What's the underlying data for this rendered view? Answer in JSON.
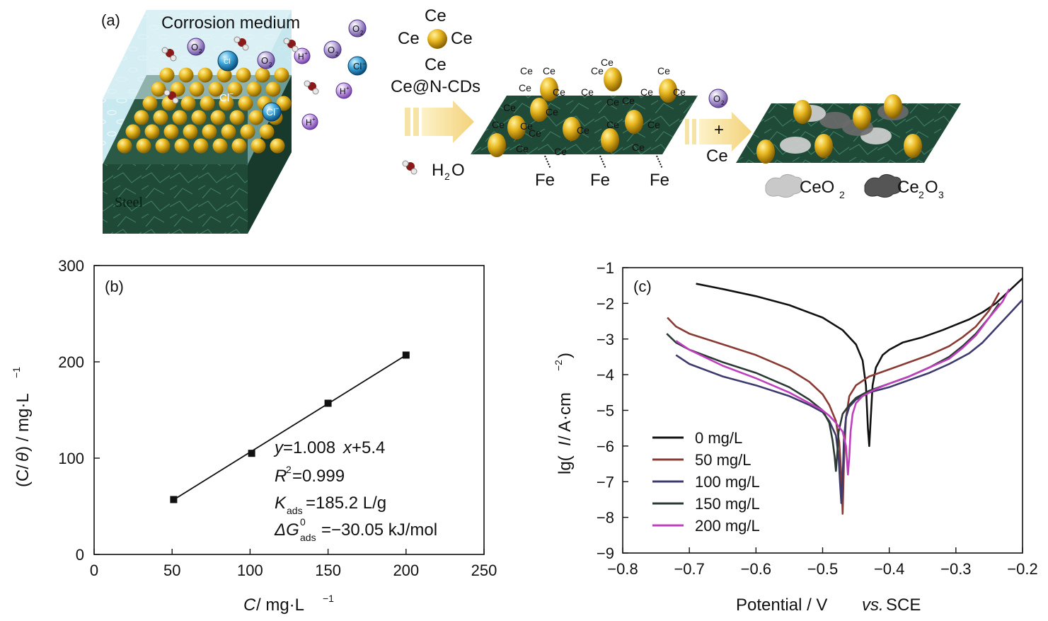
{
  "panel_a": {
    "label": "(a)",
    "medium_label": "Corrosion medium",
    "steel_label": "Steel",
    "o2_label": "O",
    "o2_sub": "2",
    "cl_label": "Cl",
    "cl_sup": "−",
    "h_label": "H",
    "h_sup": "+",
    "ce_top": "Ce",
    "ce_left": "Ce",
    "ce_right": "Ce",
    "ce_bottom": "Ce",
    "ce_ncds": "Ce@N-CDs",
    "h2o_label": "H",
    "h2o_sub": "2",
    "h2o_tail": "O",
    "plus": "+",
    "ce_arrow2": "Ce",
    "fe_label": "Fe",
    "ce_small": "Ce",
    "legend_ceo2": "CeO",
    "legend_ceo2_sub": "2",
    "legend_ce2o3_a": "Ce",
    "legend_ce2o3_sub1": "2",
    "legend_ce2o3_b": "O",
    "legend_ce2o3_sub2": "3"
  },
  "chart_data": [
    {
      "type": "scatter",
      "panel": "(b)",
      "xlabel_var": "C",
      "xlabel_unit": " / mg·L",
      "xlabel_sup": "−1",
      "ylabel_a": "(C/",
      "ylabel_theta": "θ",
      "ylabel_b": ") / mg·L",
      "ylabel_sup": "−1",
      "xlim": [
        0,
        250
      ],
      "ylim": [
        0,
        300
      ],
      "xticks": [
        0,
        50,
        100,
        150,
        200,
        250
      ],
      "yticks": [
        0,
        100,
        200,
        300
      ],
      "x": [
        51,
        101,
        150,
        200
      ],
      "y": [
        57,
        105,
        157,
        207
      ],
      "fit": {
        "slope": 1.008,
        "intercept": 5.4
      },
      "annotations": {
        "eq_y": "y",
        "eq_rest": "=1.008",
        "eq_x": "x",
        "eq_tail": "+5.4",
        "r2_r": "R",
        "r2_sup": "2",
        "r2_val": "=0.999",
        "k_k": "K",
        "k_sub": "ads",
        "k_val": "=185.2 L/g",
        "g_delta": "ΔG",
        "g_sup": "0",
        "g_sub": "ads",
        "g_val": "=−30.05 kJ/mol"
      }
    },
    {
      "type": "line",
      "panel": "(c)",
      "xlabel": "Potential / V ",
      "xlabel_vs": "vs.",
      "xlabel_tail": " SCE",
      "ylabel_a": "lg(",
      "ylabel_i": "I",
      "ylabel_b": " / A·cm",
      "ylabel_sup": "−2",
      "ylabel_c": ")",
      "xlim": [
        -0.8,
        -0.2
      ],
      "ylim": [
        -9,
        -1
      ],
      "xticks": [
        -0.8,
        -0.7,
        -0.6,
        -0.5,
        -0.4,
        -0.3,
        -0.2
      ],
      "xtick_labels": [
        "−0.8",
        "−0.7",
        "−0.6",
        "−0.5",
        "−0.4",
        "−0.3",
        "−0.2"
      ],
      "yticks": [
        -9,
        -8,
        -7,
        -6,
        -5,
        -4,
        -3,
        -2,
        -1
      ],
      "ytick_labels": [
        "−9",
        "−8",
        "−7",
        "−6",
        "−5",
        "−4",
        "−3",
        "−2",
        "−1"
      ],
      "series": [
        {
          "name": "0 mg/L",
          "color": "#111111",
          "x": [
            -0.69,
            -0.65,
            -0.6,
            -0.55,
            -0.5,
            -0.47,
            -0.45,
            -0.44,
            -0.435,
            -0.432,
            -0.43,
            -0.428,
            -0.425,
            -0.42,
            -0.41,
            -0.4,
            -0.38,
            -0.35,
            -0.32,
            -0.3,
            -0.28,
            -0.26,
            -0.24,
            -0.22,
            -0.2
          ],
          "y": [
            -1.45,
            -1.6,
            -1.8,
            -2.05,
            -2.4,
            -2.75,
            -3.15,
            -3.6,
            -4.3,
            -5.5,
            -6.0,
            -5.3,
            -4.3,
            -3.8,
            -3.45,
            -3.3,
            -3.1,
            -2.95,
            -2.75,
            -2.6,
            -2.45,
            -2.25,
            -2.0,
            -1.65,
            -1.3
          ]
        },
        {
          "name": "50 mg/L",
          "color": "#8a3a34",
          "x": [
            -0.733,
            -0.72,
            -0.7,
            -0.65,
            -0.6,
            -0.55,
            -0.52,
            -0.5,
            -0.49,
            -0.48,
            -0.475,
            -0.472,
            -0.47,
            -0.468,
            -0.465,
            -0.46,
            -0.45,
            -0.43,
            -0.4,
            -0.37,
            -0.34,
            -0.31,
            -0.29,
            -0.27,
            -0.25,
            -0.235
          ],
          "y": [
            -2.4,
            -2.65,
            -2.85,
            -3.15,
            -3.45,
            -3.85,
            -4.2,
            -4.55,
            -4.85,
            -5.3,
            -5.9,
            -6.8,
            -7.9,
            -6.5,
            -5.2,
            -4.6,
            -4.3,
            -4.05,
            -3.85,
            -3.65,
            -3.45,
            -3.2,
            -2.95,
            -2.65,
            -2.2,
            -1.7
          ]
        },
        {
          "name": "100 mg/L",
          "color": "#3e3a6e",
          "x": [
            -0.72,
            -0.7,
            -0.65,
            -0.6,
            -0.55,
            -0.52,
            -0.5,
            -0.49,
            -0.48,
            -0.476,
            -0.474,
            -0.472,
            -0.47,
            -0.468,
            -0.465,
            -0.46,
            -0.45,
            -0.43,
            -0.4,
            -0.37,
            -0.34,
            -0.31,
            -0.28,
            -0.26,
            -0.24,
            -0.22,
            -0.2
          ],
          "y": [
            -3.45,
            -3.7,
            -4.05,
            -4.3,
            -4.6,
            -4.85,
            -5.05,
            -5.3,
            -5.7,
            -6.3,
            -7.0,
            -7.6,
            -6.9,
            -5.8,
            -5.2,
            -4.9,
            -4.7,
            -4.5,
            -4.35,
            -4.15,
            -3.95,
            -3.7,
            -3.4,
            -3.1,
            -2.7,
            -2.3,
            -1.9
          ]
        },
        {
          "name": "150 mg/L",
          "color": "#2c3a36",
          "x": [
            -0.734,
            -0.72,
            -0.7,
            -0.65,
            -0.6,
            -0.55,
            -0.52,
            -0.5,
            -0.49,
            -0.485,
            -0.482,
            -0.48,
            -0.478,
            -0.476,
            -0.47,
            -0.46,
            -0.45,
            -0.43,
            -0.4,
            -0.37,
            -0.34,
            -0.31,
            -0.29,
            -0.27,
            -0.25,
            -0.235
          ],
          "y": [
            -2.85,
            -3.1,
            -3.3,
            -3.65,
            -3.95,
            -4.35,
            -4.7,
            -5.0,
            -5.35,
            -5.85,
            -6.3,
            -6.7,
            -6.2,
            -5.6,
            -5.1,
            -4.85,
            -4.65,
            -4.45,
            -4.25,
            -4.05,
            -3.8,
            -3.5,
            -3.2,
            -2.85,
            -2.4,
            -2.0
          ]
        },
        {
          "name": "200 mg/L",
          "color": "#c03fbe",
          "x": [
            -0.72,
            -0.7,
            -0.65,
            -0.6,
            -0.55,
            -0.52,
            -0.5,
            -0.49,
            -0.48,
            -0.47,
            -0.465,
            -0.462,
            -0.46,
            -0.458,
            -0.455,
            -0.45,
            -0.44,
            -0.42,
            -0.4,
            -0.37,
            -0.34,
            -0.31,
            -0.29,
            -0.27,
            -0.25,
            -0.23,
            -0.22
          ],
          "y": [
            -3.05,
            -3.3,
            -3.75,
            -4.1,
            -4.5,
            -4.8,
            -5.0,
            -5.15,
            -5.35,
            -5.6,
            -6.0,
            -6.8,
            -6.3,
            -5.6,
            -5.1,
            -4.8,
            -4.6,
            -4.4,
            -4.25,
            -4.05,
            -3.8,
            -3.55,
            -3.25,
            -2.9,
            -2.4,
            -1.95,
            -1.6
          ]
        }
      ]
    }
  ]
}
